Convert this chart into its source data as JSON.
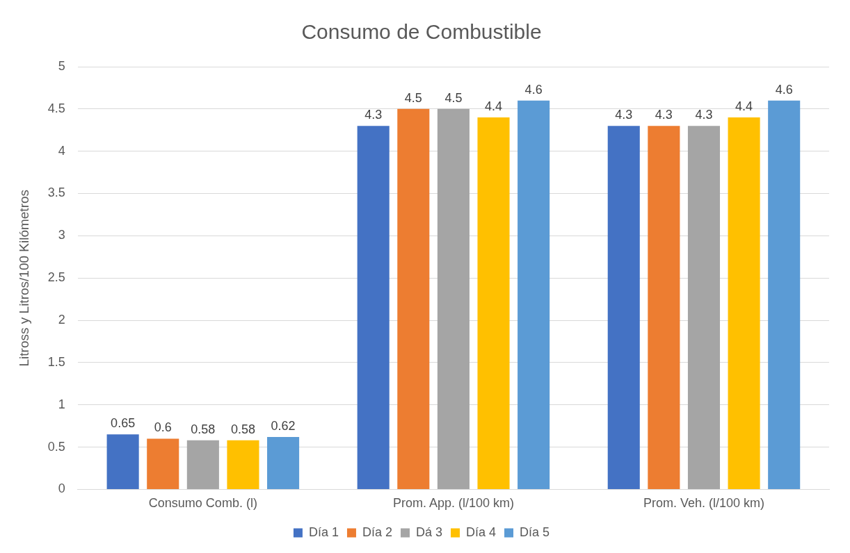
{
  "chart_data": {
    "type": "bar",
    "title": "Consumo de Combustible",
    "ylabel": "Litross y Litros/100 Kilómetros",
    "categories": [
      "Consumo Comb. (l)",
      "Prom. App. (l/100 km)",
      "Prom. Veh. (l/100 km)"
    ],
    "series": [
      {
        "name": "Día 1",
        "color": "#4472c4",
        "values": [
          0.65,
          4.3,
          4.3
        ]
      },
      {
        "name": "Día 2",
        "color": "#ed7d31",
        "values": [
          0.6,
          4.5,
          4.3
        ]
      },
      {
        "name": "Dá 3",
        "color": "#a5a5a5",
        "values": [
          0.58,
          4.5,
          4.3
        ]
      },
      {
        "name": "Día 4",
        "color": "#ffc000",
        "values": [
          0.58,
          4.4,
          4.4
        ]
      },
      {
        "name": "Día 5",
        "color": "#5b9bd5",
        "values": [
          0.62,
          4.6,
          4.6
        ]
      }
    ],
    "ylim": [
      0,
      5
    ],
    "yticks": [
      0,
      0.5,
      1,
      1.5,
      2,
      2.5,
      3,
      3.5,
      4,
      4.5,
      5
    ],
    "grid": "y",
    "legend": "bottom",
    "data_labels": true
  }
}
